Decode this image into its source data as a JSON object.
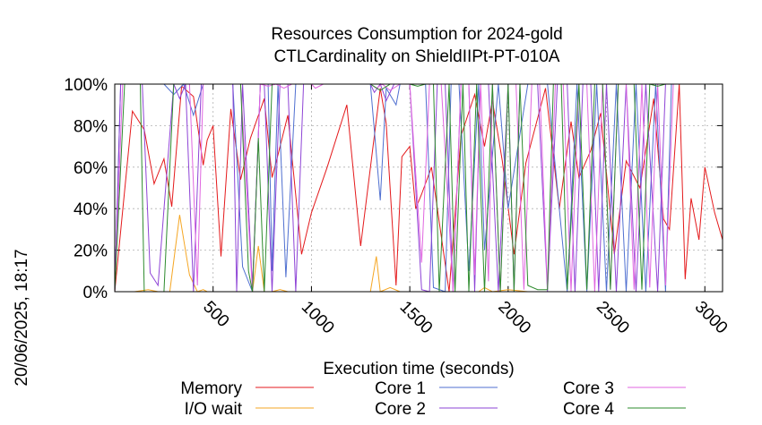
{
  "chart_data": {
    "type": "line",
    "title_lines": [
      "Resources Consumption for 2024-gold",
      "CTLCardinality on ShieldIIPt-PT-010A"
    ],
    "xlabel": "Execution time (seconds)",
    "ylabel": "",
    "side_label": "20/06/2025, 18:17",
    "xlim": [
      0,
      3090
    ],
    "ylim": [
      0,
      100
    ],
    "x_ticks": [
      {
        "value": 500,
        "label": "500"
      },
      {
        "value": 1000,
        "label": "1000"
      },
      {
        "value": 1500,
        "label": "1500"
      },
      {
        "value": 2000,
        "label": "2000"
      },
      {
        "value": 2500,
        "label": "2500"
      },
      {
        "value": 3000,
        "label": "3000"
      }
    ],
    "y_ticks": [
      {
        "value": 0,
        "label": "0%"
      },
      {
        "value": 20,
        "label": "20%"
      },
      {
        "value": 40,
        "label": "40%"
      },
      {
        "value": 60,
        "label": "60%"
      },
      {
        "value": 80,
        "label": "80%"
      },
      {
        "value": 100,
        "label": "100%"
      }
    ],
    "grid": true,
    "legend_position": "bottom",
    "series": [
      {
        "name": "Memory",
        "color": "#e41a1c",
        "x": [
          0,
          90,
          150,
          200,
          250,
          290,
          340,
          400,
          450,
          470,
          500,
          540,
          590,
          640,
          690,
          760,
          800,
          830,
          880,
          950,
          1000,
          1080,
          1180,
          1250,
          1350,
          1380,
          1430,
          1460,
          1500,
          1530,
          1560,
          1610,
          1700,
          1760,
          1830,
          1880,
          1920,
          1970,
          2030,
          2090,
          2190,
          2260,
          2320,
          2360,
          2420,
          2470,
          2540,
          2600,
          2670,
          2700,
          2740,
          2790,
          2820,
          2870,
          2900,
          2930,
          2970,
          3000,
          3050,
          3090
        ],
        "y": [
          0,
          87,
          78,
          52,
          64,
          41,
          99,
          94,
          61,
          73,
          80,
          17,
          88,
          54,
          74,
          93,
          55,
          66,
          85,
          18,
          38,
          60,
          90,
          22,
          98,
          81,
          3,
          65,
          70,
          40,
          47,
          60,
          0,
          75,
          95,
          70,
          92,
          63,
          18,
          62,
          98,
          40,
          82,
          55,
          68,
          86,
          18,
          63,
          50,
          68,
          93,
          35,
          30,
          100,
          6,
          45,
          25,
          60,
          38,
          25
        ]
      },
      {
        "name": "I/O wait",
        "color": "#f5a623",
        "x": [
          0,
          100,
          170,
          220,
          280,
          330,
          380,
          420,
          450,
          470,
          600,
          640,
          700,
          730,
          760,
          800,
          840,
          880,
          1000,
          1200,
          1300,
          1330,
          1350,
          1400,
          1450,
          1500,
          1850,
          1880,
          1920,
          2000,
          2100
        ],
        "y": [
          0,
          0,
          1,
          0,
          0,
          37,
          8,
          0,
          1,
          0,
          0,
          0,
          0,
          22,
          0,
          0,
          1,
          0,
          0,
          0,
          0,
          17,
          0,
          2,
          0,
          0,
          0,
          2,
          0,
          1,
          0
        ]
      },
      {
        "name": "Core 1",
        "color": "#4f6fd0",
        "x": [
          0,
          30,
          100,
          250,
          300,
          350,
          400,
          450,
          480,
          520,
          560,
          600,
          650,
          700,
          740,
          780,
          800,
          830,
          870,
          920,
          1000,
          1300,
          1350,
          1380,
          1430,
          1450,
          1480,
          1510,
          1580,
          1620,
          1680,
          1710,
          1750,
          1800,
          1850,
          1880,
          1950,
          2000,
          2100,
          2200,
          2300,
          2350,
          2400,
          2450,
          2500,
          2550,
          2600,
          2650,
          2700,
          2750,
          2800,
          2830,
          2870,
          3090
        ],
        "y": [
          0,
          100,
          100,
          100,
          95,
          100,
          85,
          100,
          100,
          100,
          100,
          100,
          12,
          0,
          100,
          100,
          10,
          100,
          7,
          100,
          100,
          100,
          44,
          98,
          90,
          100,
          100,
          100,
          100,
          2,
          0,
          100,
          100,
          10,
          100,
          20,
          100,
          40,
          100,
          100,
          0,
          100,
          0,
          100,
          0,
          100,
          0,
          100,
          0,
          100,
          0,
          100,
          100,
          100
        ]
      },
      {
        "name": "Core 2",
        "color": "#8e44d6",
        "x": [
          0,
          30,
          60,
          100,
          140,
          180,
          220,
          300,
          330,
          360,
          400,
          440,
          470,
          500,
          540,
          600,
          620,
          650,
          700,
          740,
          760,
          800,
          840,
          880,
          920,
          960,
          1000,
          1300,
          1320,
          1350,
          1380,
          1420,
          1460,
          1500,
          1560,
          1600,
          1640,
          1680,
          1720,
          1760,
          1800,
          1830,
          1860,
          1900,
          1950,
          2000,
          2030,
          2060,
          2100,
          2150,
          2200,
          2250,
          2300,
          2340,
          2380,
          2420,
          2460,
          2500,
          2550,
          2600,
          2650,
          2700,
          2760,
          2800,
          2850,
          3090
        ],
        "y": [
          0,
          100,
          100,
          100,
          100,
          9,
          3,
          100,
          93,
          100,
          0,
          100,
          100,
          100,
          100,
          100,
          0,
          100,
          2,
          100,
          100,
          0,
          100,
          100,
          0,
          100,
          100,
          100,
          96,
          100,
          92,
          100,
          100,
          100,
          1,
          0,
          100,
          100,
          0,
          100,
          100,
          0,
          100,
          100,
          0,
          100,
          0,
          100,
          100,
          100,
          0,
          100,
          100,
          0,
          100,
          100,
          0,
          100,
          0,
          100,
          0,
          100,
          0,
          100,
          100,
          100
        ]
      },
      {
        "name": "Core 3",
        "color": "#e066e0",
        "x": [
          0,
          40,
          150,
          200,
          260,
          300,
          350,
          380,
          420,
          450,
          480,
          520,
          560,
          600,
          640,
          700,
          740,
          780,
          820,
          860,
          900,
          950,
          1000,
          1020,
          1060,
          1300,
          1330,
          1360,
          1400,
          1450,
          1500,
          1560,
          1600,
          1660,
          1720,
          1760,
          1800,
          1830,
          1860,
          1900,
          1920,
          1960,
          2000,
          2040,
          2080,
          2120,
          2160,
          2200,
          2240,
          2280,
          2320,
          2360,
          2400,
          2440,
          2480,
          2520,
          2560,
          2600,
          2640,
          2680,
          2720,
          2760,
          2800,
          2840,
          2880,
          3090
        ],
        "y": [
          0,
          100,
          100,
          100,
          100,
          100,
          100,
          100,
          3,
          100,
          100,
          100,
          100,
          100,
          100,
          0,
          100,
          99,
          100,
          98,
          100,
          100,
          100,
          98,
          100,
          100,
          98,
          100,
          97,
          100,
          100,
          14,
          100,
          100,
          0,
          100,
          100,
          8,
          100,
          5,
          100,
          0,
          100,
          100,
          1,
          100,
          100,
          1,
          100,
          100,
          0,
          100,
          100,
          0,
          100,
          1,
          100,
          100,
          1,
          100,
          2,
          100,
          3,
          100,
          100,
          100
        ]
      },
      {
        "name": "Core 4",
        "color": "#2e8b2e",
        "x": [
          0,
          50,
          100,
          130,
          150,
          200,
          250,
          300,
          380,
          420,
          450,
          470,
          520,
          560,
          600,
          640,
          680,
          700,
          730,
          760,
          800,
          850,
          900,
          950,
          1000,
          1300,
          1350,
          1400,
          1430,
          1460,
          1500,
          1540,
          1580,
          1620,
          1650,
          1700,
          1730,
          1770,
          1800,
          1840,
          1880,
          1920,
          1960,
          2000,
          2030,
          2060,
          2100,
          2150,
          2200,
          2230,
          2270,
          2300,
          2360,
          2400,
          2440,
          2480,
          2520,
          2560,
          2600,
          2640,
          2680,
          2720,
          2760,
          2800,
          2830,
          3090
        ],
        "y": [
          0,
          100,
          100,
          100,
          0,
          0,
          0,
          100,
          100,
          100,
          100,
          100,
          100,
          100,
          100,
          100,
          10,
          0,
          74,
          0,
          100,
          100,
          100,
          100,
          100,
          100,
          97,
          100,
          100,
          100,
          100,
          99,
          100,
          100,
          0,
          100,
          0,
          100,
          0,
          100,
          0,
          100,
          0,
          100,
          0,
          100,
          3,
          1,
          1,
          100,
          100,
          1,
          100,
          1,
          100,
          100,
          1,
          100,
          100,
          100,
          1,
          100,
          99,
          100,
          100,
          100
        ]
      }
    ]
  }
}
